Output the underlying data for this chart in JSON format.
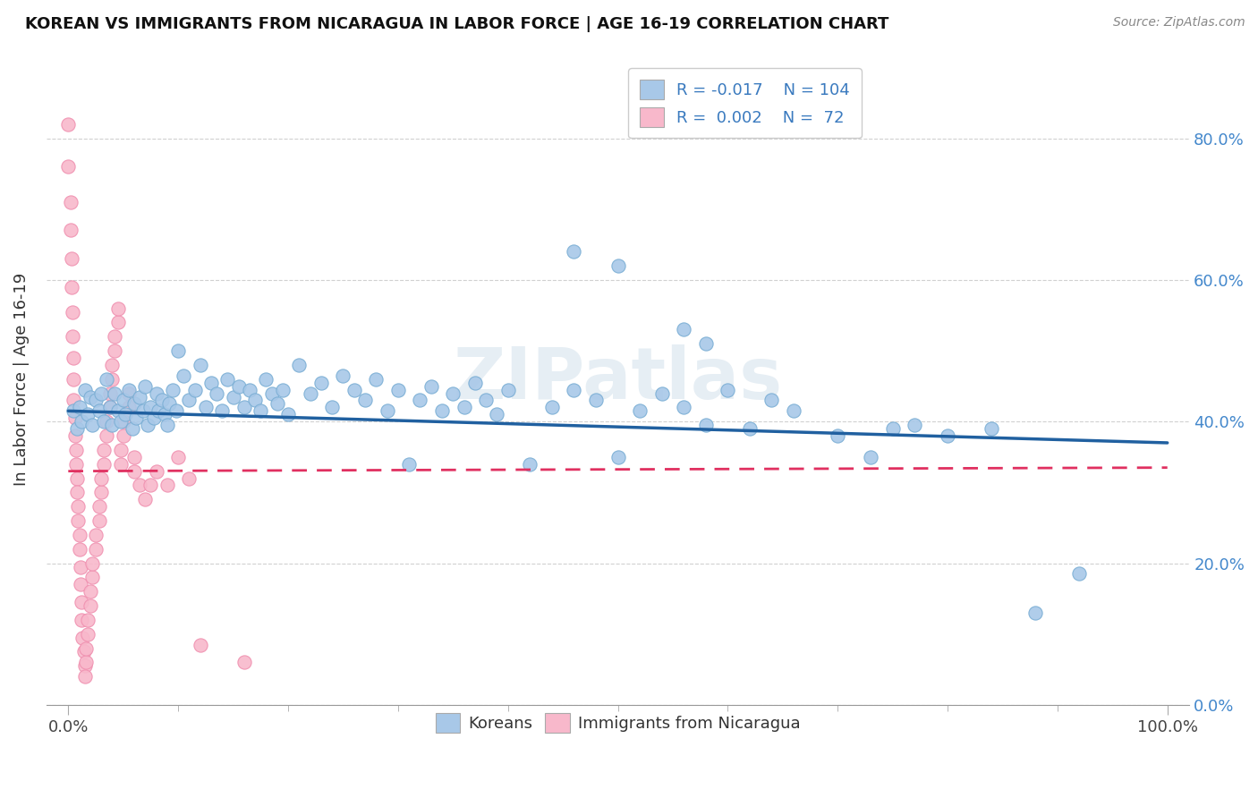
{
  "title": "KOREAN VS IMMIGRANTS FROM NICARAGUA IN LABOR FORCE | AGE 16-19 CORRELATION CHART",
  "source": "Source: ZipAtlas.com",
  "ylabel": "In Labor Force | Age 16-19",
  "xlim": [
    -0.02,
    1.02
  ],
  "ylim": [
    0.0,
    0.92
  ],
  "x_ticks": [
    0.0,
    1.0
  ],
  "x_tick_labels": [
    "0.0%",
    "100.0%"
  ],
  "y_ticks": [
    0.0,
    0.2,
    0.4,
    0.6,
    0.8
  ],
  "y_tick_labels_left": [
    "",
    "",
    "",
    "",
    ""
  ],
  "y_tick_labels_right": [
    "0.0%",
    "20.0%",
    "40.0%",
    "60.0%",
    "80.0%"
  ],
  "legend_text_color": "#3a7abf",
  "blue_color": "#a8c8e8",
  "pink_color": "#f8b8cb",
  "blue_edge_color": "#7aaed4",
  "pink_edge_color": "#f090b0",
  "blue_line_color": "#2060a0",
  "pink_line_color": "#e03060",
  "watermark": "ZIPatlas",
  "blue_scatter": [
    [
      0.005,
      0.415
    ],
    [
      0.008,
      0.39
    ],
    [
      0.01,
      0.42
    ],
    [
      0.012,
      0.4
    ],
    [
      0.015,
      0.445
    ],
    [
      0.018,
      0.41
    ],
    [
      0.02,
      0.435
    ],
    [
      0.022,
      0.395
    ],
    [
      0.025,
      0.43
    ],
    [
      0.028,
      0.415
    ],
    [
      0.03,
      0.44
    ],
    [
      0.032,
      0.4
    ],
    [
      0.035,
      0.46
    ],
    [
      0.038,
      0.42
    ],
    [
      0.04,
      0.395
    ],
    [
      0.042,
      0.44
    ],
    [
      0.045,
      0.415
    ],
    [
      0.048,
      0.4
    ],
    [
      0.05,
      0.43
    ],
    [
      0.052,
      0.41
    ],
    [
      0.055,
      0.445
    ],
    [
      0.058,
      0.39
    ],
    [
      0.06,
      0.425
    ],
    [
      0.062,
      0.405
    ],
    [
      0.065,
      0.435
    ],
    [
      0.068,
      0.415
    ],
    [
      0.07,
      0.45
    ],
    [
      0.072,
      0.395
    ],
    [
      0.075,
      0.42
    ],
    [
      0.078,
      0.405
    ],
    [
      0.08,
      0.44
    ],
    [
      0.082,
      0.415
    ],
    [
      0.085,
      0.43
    ],
    [
      0.088,
      0.41
    ],
    [
      0.09,
      0.395
    ],
    [
      0.092,
      0.425
    ],
    [
      0.095,
      0.445
    ],
    [
      0.098,
      0.415
    ],
    [
      0.1,
      0.5
    ],
    [
      0.105,
      0.465
    ],
    [
      0.11,
      0.43
    ],
    [
      0.115,
      0.445
    ],
    [
      0.12,
      0.48
    ],
    [
      0.125,
      0.42
    ],
    [
      0.13,
      0.455
    ],
    [
      0.135,
      0.44
    ],
    [
      0.14,
      0.415
    ],
    [
      0.145,
      0.46
    ],
    [
      0.15,
      0.435
    ],
    [
      0.155,
      0.45
    ],
    [
      0.16,
      0.42
    ],
    [
      0.165,
      0.445
    ],
    [
      0.17,
      0.43
    ],
    [
      0.175,
      0.415
    ],
    [
      0.18,
      0.46
    ],
    [
      0.185,
      0.44
    ],
    [
      0.19,
      0.425
    ],
    [
      0.195,
      0.445
    ],
    [
      0.2,
      0.41
    ],
    [
      0.21,
      0.48
    ],
    [
      0.22,
      0.44
    ],
    [
      0.23,
      0.455
    ],
    [
      0.24,
      0.42
    ],
    [
      0.25,
      0.465
    ],
    [
      0.26,
      0.445
    ],
    [
      0.27,
      0.43
    ],
    [
      0.28,
      0.46
    ],
    [
      0.29,
      0.415
    ],
    [
      0.3,
      0.445
    ],
    [
      0.31,
      0.34
    ],
    [
      0.32,
      0.43
    ],
    [
      0.33,
      0.45
    ],
    [
      0.34,
      0.415
    ],
    [
      0.35,
      0.44
    ],
    [
      0.36,
      0.42
    ],
    [
      0.37,
      0.455
    ],
    [
      0.38,
      0.43
    ],
    [
      0.39,
      0.41
    ],
    [
      0.4,
      0.445
    ],
    [
      0.42,
      0.34
    ],
    [
      0.44,
      0.42
    ],
    [
      0.46,
      0.445
    ],
    [
      0.48,
      0.43
    ],
    [
      0.5,
      0.35
    ],
    [
      0.52,
      0.415
    ],
    [
      0.54,
      0.44
    ],
    [
      0.56,
      0.42
    ],
    [
      0.58,
      0.395
    ],
    [
      0.6,
      0.445
    ],
    [
      0.62,
      0.39
    ],
    [
      0.64,
      0.43
    ],
    [
      0.66,
      0.415
    ],
    [
      0.7,
      0.38
    ],
    [
      0.73,
      0.35
    ],
    [
      0.75,
      0.39
    ],
    [
      0.77,
      0.395
    ],
    [
      0.8,
      0.38
    ],
    [
      0.84,
      0.39
    ],
    [
      0.88,
      0.13
    ],
    [
      0.92,
      0.185
    ],
    [
      0.46,
      0.64
    ],
    [
      0.5,
      0.62
    ],
    [
      0.56,
      0.53
    ],
    [
      0.58,
      0.51
    ]
  ],
  "pink_scatter": [
    [
      0.0,
      0.82
    ],
    [
      0.0,
      0.76
    ],
    [
      0.002,
      0.71
    ],
    [
      0.002,
      0.67
    ],
    [
      0.003,
      0.63
    ],
    [
      0.003,
      0.59
    ],
    [
      0.004,
      0.555
    ],
    [
      0.004,
      0.52
    ],
    [
      0.005,
      0.49
    ],
    [
      0.005,
      0.46
    ],
    [
      0.005,
      0.43
    ],
    [
      0.006,
      0.405
    ],
    [
      0.006,
      0.38
    ],
    [
      0.007,
      0.36
    ],
    [
      0.007,
      0.34
    ],
    [
      0.008,
      0.32
    ],
    [
      0.008,
      0.3
    ],
    [
      0.009,
      0.28
    ],
    [
      0.009,
      0.26
    ],
    [
      0.01,
      0.24
    ],
    [
      0.01,
      0.22
    ],
    [
      0.011,
      0.195
    ],
    [
      0.011,
      0.17
    ],
    [
      0.012,
      0.145
    ],
    [
      0.012,
      0.12
    ],
    [
      0.013,
      0.095
    ],
    [
      0.014,
      0.075
    ],
    [
      0.015,
      0.055
    ],
    [
      0.015,
      0.04
    ],
    [
      0.016,
      0.06
    ],
    [
      0.016,
      0.08
    ],
    [
      0.018,
      0.1
    ],
    [
      0.018,
      0.12
    ],
    [
      0.02,
      0.14
    ],
    [
      0.02,
      0.16
    ],
    [
      0.022,
      0.18
    ],
    [
      0.022,
      0.2
    ],
    [
      0.025,
      0.22
    ],
    [
      0.025,
      0.24
    ],
    [
      0.028,
      0.26
    ],
    [
      0.028,
      0.28
    ],
    [
      0.03,
      0.3
    ],
    [
      0.03,
      0.32
    ],
    [
      0.032,
      0.34
    ],
    [
      0.032,
      0.36
    ],
    [
      0.035,
      0.38
    ],
    [
      0.035,
      0.4
    ],
    [
      0.038,
      0.42
    ],
    [
      0.038,
      0.44
    ],
    [
      0.04,
      0.46
    ],
    [
      0.04,
      0.48
    ],
    [
      0.042,
      0.5
    ],
    [
      0.042,
      0.52
    ],
    [
      0.045,
      0.54
    ],
    [
      0.045,
      0.56
    ],
    [
      0.048,
      0.34
    ],
    [
      0.048,
      0.36
    ],
    [
      0.05,
      0.38
    ],
    [
      0.05,
      0.4
    ],
    [
      0.055,
      0.42
    ],
    [
      0.055,
      0.44
    ],
    [
      0.06,
      0.33
    ],
    [
      0.06,
      0.35
    ],
    [
      0.065,
      0.31
    ],
    [
      0.07,
      0.29
    ],
    [
      0.075,
      0.31
    ],
    [
      0.08,
      0.33
    ],
    [
      0.09,
      0.31
    ],
    [
      0.1,
      0.35
    ],
    [
      0.11,
      0.32
    ],
    [
      0.12,
      0.085
    ],
    [
      0.16,
      0.06
    ]
  ],
  "blue_trendline": [
    [
      0.0,
      0.415
    ],
    [
      1.0,
      0.37
    ]
  ],
  "pink_trendline": [
    [
      0.0,
      0.33
    ],
    [
      1.0,
      0.335
    ]
  ]
}
